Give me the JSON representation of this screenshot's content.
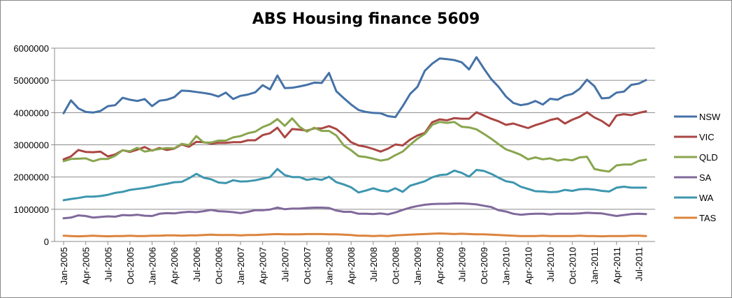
{
  "chart_data": {
    "type": "line",
    "title": "ABS Housing finance 5609",
    "xlabel": "",
    "ylabel": "",
    "ylim": [
      0,
      6000000
    ],
    "yticks": [
      0,
      1000000,
      2000000,
      3000000,
      4000000,
      5000000,
      6000000
    ],
    "ytick_labels": [
      "0",
      "1000000",
      "2000000",
      "3000000",
      "4000000",
      "5000000",
      "6000000"
    ],
    "grid": "horizontal",
    "legend_position": "right",
    "x_tick_labels": [
      "Jan-2005",
      "Apr-2005",
      "Jul-2005",
      "Oct-2005",
      "Jan-2006",
      "Apr-2006",
      "Jul-2006",
      "Oct-2006",
      "Jan-2007",
      "Apr-2007",
      "Jul-2007",
      "Oct-2007",
      "Jan-2008",
      "Apr-2008",
      "Jul-2008",
      "Oct-2008",
      "Jan-2009",
      "Apr-2009",
      "Jul-2009",
      "Oct-2009",
      "Jan-2010",
      "Apr-2010",
      "Jul-2010",
      "Oct-2010",
      "Jan-2011",
      "Apr-2011",
      "Jul-2011"
    ],
    "x": [
      "Jan-2005",
      "Feb-2005",
      "Mar-2005",
      "Apr-2005",
      "May-2005",
      "Jun-2005",
      "Jul-2005",
      "Aug-2005",
      "Sep-2005",
      "Oct-2005",
      "Nov-2005",
      "Dec-2005",
      "Jan-2006",
      "Feb-2006",
      "Mar-2006",
      "Apr-2006",
      "May-2006",
      "Jun-2006",
      "Jul-2006",
      "Aug-2006",
      "Sep-2006",
      "Oct-2006",
      "Nov-2006",
      "Dec-2006",
      "Jan-2007",
      "Feb-2007",
      "Mar-2007",
      "Apr-2007",
      "May-2007",
      "Jun-2007",
      "Jul-2007",
      "Aug-2007",
      "Sep-2007",
      "Oct-2007",
      "Nov-2007",
      "Dec-2007",
      "Jan-2008",
      "Feb-2008",
      "Mar-2008",
      "Apr-2008",
      "May-2008",
      "Jun-2008",
      "Jul-2008",
      "Aug-2008",
      "Sep-2008",
      "Oct-2008",
      "Nov-2008",
      "Dec-2008",
      "Jan-2009",
      "Feb-2009",
      "Mar-2009",
      "Apr-2009",
      "May-2009",
      "Jun-2009",
      "Jul-2009",
      "Aug-2009",
      "Sep-2009",
      "Oct-2009",
      "Nov-2009",
      "Dec-2009",
      "Jan-2010",
      "Feb-2010",
      "Mar-2010",
      "Apr-2010",
      "May-2010",
      "Jun-2010",
      "Jul-2010",
      "Aug-2010",
      "Sep-2010",
      "Oct-2010",
      "Nov-2010",
      "Dec-2010",
      "Jan-2011",
      "Feb-2011",
      "Mar-2011",
      "Apr-2011",
      "May-2011",
      "Jun-2011",
      "Jul-2011",
      "Aug-2011"
    ],
    "series": [
      {
        "name": "NSW",
        "color": "#4572A7",
        "values": [
          3980000,
          4380000,
          4130000,
          4020000,
          4000000,
          4050000,
          4200000,
          4230000,
          4460000,
          4400000,
          4360000,
          4420000,
          4200000,
          4370000,
          4400000,
          4480000,
          4680000,
          4670000,
          4640000,
          4610000,
          4570000,
          4500000,
          4620000,
          4420000,
          4520000,
          4560000,
          4630000,
          4850000,
          4720000,
          5150000,
          4760000,
          4770000,
          4810000,
          4860000,
          4930000,
          4920000,
          5230000,
          4660000,
          4450000,
          4250000,
          4080000,
          4020000,
          3990000,
          3980000,
          3890000,
          3860000,
          4200000,
          4580000,
          4800000,
          5300000,
          5520000,
          5680000,
          5660000,
          5630000,
          5560000,
          5340000,
          5720000,
          5370000,
          5040000,
          4800000,
          4500000,
          4300000,
          4230000,
          4270000,
          4360000,
          4250000,
          4430000,
          4400000,
          4520000,
          4580000,
          4740000,
          5020000,
          4820000,
          4440000,
          4460000,
          4620000,
          4650000,
          4860000,
          4900000,
          5010000
        ]
      },
      {
        "name": "VIC",
        "color": "#AA4643",
        "values": [
          2550000,
          2640000,
          2840000,
          2780000,
          2770000,
          2790000,
          2640000,
          2700000,
          2830000,
          2780000,
          2850000,
          2930000,
          2820000,
          2900000,
          2840000,
          2880000,
          3010000,
          2940000,
          3090000,
          3080000,
          3040000,
          3060000,
          3060000,
          3080000,
          3080000,
          3140000,
          3140000,
          3300000,
          3360000,
          3530000,
          3230000,
          3490000,
          3470000,
          3440000,
          3510000,
          3510000,
          3580000,
          3490000,
          3300000,
          3080000,
          2980000,
          2940000,
          2870000,
          2790000,
          2880000,
          3010000,
          2980000,
          3160000,
          3290000,
          3370000,
          3700000,
          3790000,
          3760000,
          3830000,
          3810000,
          3810000,
          4010000,
          3910000,
          3810000,
          3730000,
          3620000,
          3660000,
          3590000,
          3520000,
          3610000,
          3680000,
          3770000,
          3820000,
          3660000,
          3780000,
          3870000,
          4010000,
          3850000,
          3740000,
          3580000,
          3910000,
          3950000,
          3920000,
          3990000,
          4040000
        ]
      },
      {
        "name": "QLD",
        "color": "#89A54E",
        "values": [
          2490000,
          2560000,
          2570000,
          2580000,
          2490000,
          2560000,
          2560000,
          2660000,
          2830000,
          2800000,
          2910000,
          2790000,
          2830000,
          2870000,
          2900000,
          2890000,
          3030000,
          2990000,
          3270000,
          3070000,
          3070000,
          3130000,
          3130000,
          3230000,
          3270000,
          3360000,
          3410000,
          3550000,
          3640000,
          3800000,
          3590000,
          3820000,
          3560000,
          3410000,
          3530000,
          3430000,
          3430000,
          3290000,
          2980000,
          2830000,
          2650000,
          2620000,
          2570000,
          2510000,
          2550000,
          2680000,
          2790000,
          3000000,
          3190000,
          3340000,
          3620000,
          3710000,
          3680000,
          3710000,
          3560000,
          3540000,
          3480000,
          3340000,
          3190000,
          3020000,
          2860000,
          2780000,
          2690000,
          2550000,
          2610000,
          2550000,
          2580000,
          2510000,
          2550000,
          2520000,
          2610000,
          2630000,
          2250000,
          2200000,
          2170000,
          2360000,
          2390000,
          2390000,
          2500000,
          2540000
        ]
      },
      {
        "name": "SA",
        "color": "#80699B",
        "values": [
          720000,
          740000,
          810000,
          790000,
          740000,
          760000,
          780000,
          770000,
          820000,
          810000,
          830000,
          800000,
          790000,
          860000,
          880000,
          870000,
          900000,
          920000,
          910000,
          940000,
          980000,
          940000,
          930000,
          910000,
          880000,
          920000,
          970000,
          970000,
          990000,
          1050000,
          1000000,
          1020000,
          1020000,
          1040000,
          1050000,
          1050000,
          1040000,
          960000,
          920000,
          920000,
          860000,
          860000,
          850000,
          870000,
          840000,
          900000,
          980000,
          1050000,
          1100000,
          1140000,
          1160000,
          1170000,
          1170000,
          1180000,
          1180000,
          1170000,
          1150000,
          1110000,
          1070000,
          970000,
          930000,
          860000,
          830000,
          850000,
          860000,
          860000,
          840000,
          860000,
          860000,
          860000,
          870000,
          890000,
          880000,
          870000,
          830000,
          790000,
          820000,
          850000,
          860000,
          850000
        ]
      },
      {
        "name": "WA",
        "color": "#3D96AE",
        "values": [
          1280000,
          1320000,
          1350000,
          1390000,
          1390000,
          1410000,
          1450000,
          1510000,
          1540000,
          1600000,
          1630000,
          1660000,
          1700000,
          1750000,
          1790000,
          1840000,
          1850000,
          1960000,
          2100000,
          1980000,
          1930000,
          1830000,
          1810000,
          1900000,
          1860000,
          1870000,
          1900000,
          1950000,
          2000000,
          2250000,
          2060000,
          2000000,
          2000000,
          1910000,
          1950000,
          1910000,
          2010000,
          1840000,
          1770000,
          1680000,
          1520000,
          1580000,
          1650000,
          1580000,
          1550000,
          1650000,
          1540000,
          1730000,
          1800000,
          1870000,
          1990000,
          2060000,
          2080000,
          2200000,
          2130000,
          2010000,
          2220000,
          2190000,
          2100000,
          1980000,
          1870000,
          1830000,
          1700000,
          1630000,
          1560000,
          1550000,
          1530000,
          1540000,
          1600000,
          1570000,
          1620000,
          1630000,
          1610000,
          1570000,
          1550000,
          1670000,
          1700000,
          1670000,
          1670000,
          1670000
        ]
      },
      {
        "name": "TAS",
        "color": "#DB843D",
        "values": [
          180000,
          170000,
          160000,
          170000,
          180000,
          170000,
          160000,
          170000,
          170000,
          180000,
          170000,
          170000,
          180000,
          180000,
          190000,
          190000,
          180000,
          190000,
          190000,
          200000,
          210000,
          200000,
          200000,
          200000,
          190000,
          200000,
          200000,
          210000,
          220000,
          230000,
          220000,
          220000,
          220000,
          230000,
          230000,
          230000,
          220000,
          220000,
          210000,
          200000,
          180000,
          180000,
          170000,
          180000,
          170000,
          190000,
          200000,
          210000,
          220000,
          230000,
          240000,
          250000,
          240000,
          230000,
          240000,
          230000,
          220000,
          220000,
          210000,
          200000,
          190000,
          180000,
          170000,
          170000,
          170000,
          180000,
          170000,
          170000,
          170000,
          170000,
          180000,
          170000,
          170000,
          160000,
          170000,
          170000,
          170000,
          180000,
          180000,
          170000
        ]
      }
    ]
  }
}
